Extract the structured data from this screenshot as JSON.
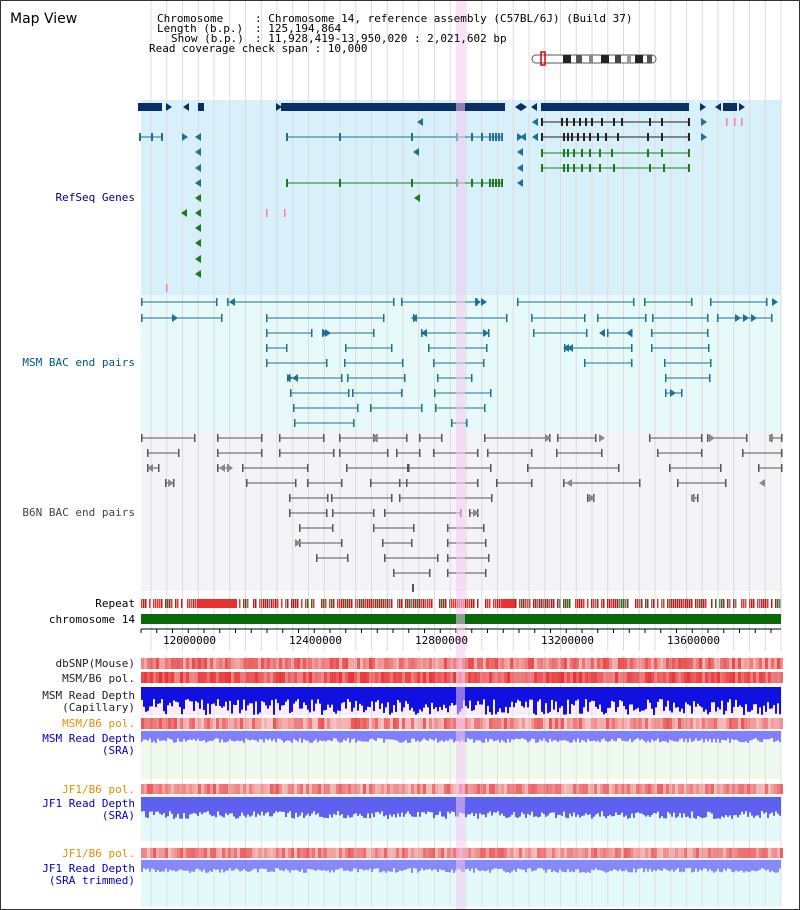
{
  "title": "Map View",
  "header": {
    "chromosome_key": "Chromosome",
    "chromosome_val": ": Chromosome 14, reference assembly (C57BL/6J) (Build 37)",
    "length_key": "Length (b.p.)",
    "length_val": ": 125,194,864",
    "show_key": "Show (b.p.)",
    "show_val": ": 11,928,419-13,950,020 : 2,021,602 bp",
    "coverage": "Read coverage check span : 10,000"
  },
  "tracks": {
    "refseq": "RefSeq Genes",
    "msm_bac": "MSM BAC end pairs",
    "b6n_bac": "B6N BAC end pairs",
    "repeat": "Repeat",
    "chromosome": "chromosome 14",
    "dbsnp": "dbSNP(Mouse)",
    "msm_b6_pol": "MSM/B6 pol.",
    "msm_read_depth": "MSM Read Depth",
    "msm_read_depth_sub": "(Capillary)",
    "msm_b6_pol_sra": "MSM/B6 pol.",
    "msm_read_depth_sra": "MSM Read Depth",
    "msm_read_depth_sra_sub": "(SRA)",
    "jf1_b6_pol": "JF1/B6 pol.",
    "jf1_read_depth": "JF1 Read Depth",
    "jf1_read_depth_sub": "(SRA)",
    "jf1_b6_pol_2": "JF1/B6 pol.",
    "jf1_read_depth_trim": "JF1 Read Depth",
    "jf1_read_depth_trim_sub": "(SRA trimmed)"
  },
  "axis": {
    "ticks": [
      "12000000",
      "12400000",
      "12800000",
      "13200000",
      "13600000"
    ],
    "tick_values": [
      12000000,
      12400000,
      12800000,
      13200000,
      13600000
    ],
    "range": [
      11928419,
      13950020
    ]
  },
  "colors": {
    "refseq_bg": "#d8f0fa",
    "msm_bg": "#e6fafa",
    "b6n_bg": "#f4f4f8",
    "gene_dark": "#0a2f66",
    "gene_teal": "#207090",
    "gene_green": "#1d7a1d",
    "highlight": "#f4c8f0",
    "chrom_green": "#0a6a0a",
    "label_navy": "#000080",
    "label_teal": "#005a78",
    "label_orange": "#e09000",
    "label_blue": "#0000c8"
  }
}
